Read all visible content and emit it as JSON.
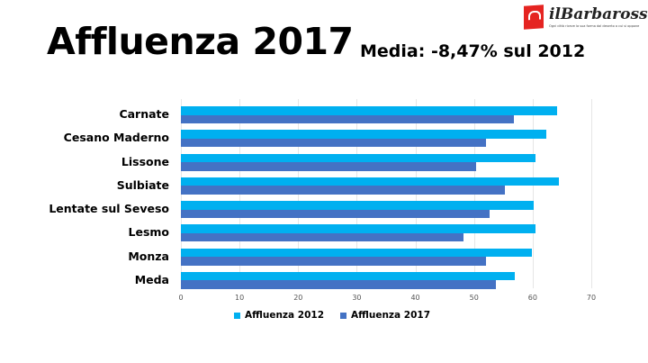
{
  "header": {
    "title": "Affluenza 2017",
    "subtitle": "Media: -8,47% sul 2012"
  },
  "logo": {
    "name": "ilBarbarossa",
    "tagline": "Ogni città riceve la sua forma dal deserto a cui si oppone",
    "brand_color": "#e52421"
  },
  "chart_data": {
    "type": "bar",
    "orientation": "horizontal",
    "title": "Affluenza 2017",
    "subtitle": "Media: -8,47% sul 2012",
    "xlabel": "",
    "ylabel": "",
    "xlim": [
      0,
      70
    ],
    "xticks": [
      0,
      10,
      20,
      30,
      40,
      50,
      60,
      70
    ],
    "grid": true,
    "legend_position": "bottom",
    "categories": [
      "Carnate",
      "Cesano Maderno",
      "Lissone",
      "Sulbiate",
      "Lentate sul Seveso",
      "Lesmo",
      "Monza",
      "Meda"
    ],
    "series": [
      {
        "name": "Affluenza 2012",
        "color": "#00b0f0",
        "values": [
          64.2,
          62.4,
          60.5,
          64.4,
          60.1,
          60.5,
          59.8,
          57.0
        ]
      },
      {
        "name": "Affluenza 2017",
        "color": "#4472c4",
        "values": [
          56.8,
          52.1,
          50.3,
          55.3,
          52.7,
          48.2,
          52.0,
          53.7
        ]
      }
    ]
  }
}
